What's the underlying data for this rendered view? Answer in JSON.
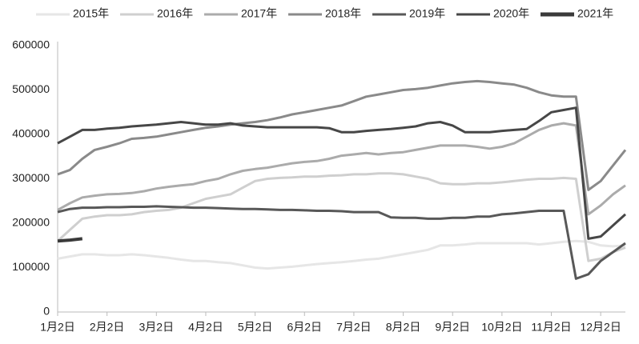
{
  "chart_data": {
    "type": "line",
    "categories": [
      "1月2日",
      null,
      null,
      null,
      "2月2日",
      null,
      null,
      null,
      "3月2日",
      null,
      null,
      null,
      "4月2日",
      null,
      null,
      null,
      "5月2日",
      null,
      null,
      null,
      "6月2日",
      null,
      null,
      null,
      "7月2日",
      null,
      null,
      null,
      "8月2日",
      null,
      null,
      null,
      "9月2日",
      null,
      null,
      null,
      "10月2日",
      null,
      null,
      null,
      "11月2日",
      null,
      null,
      null,
      "12月2日",
      null,
      null
    ],
    "series": [
      {
        "name": "2015年",
        "color": "#e6e6e6",
        "values": [
          120000,
          125000,
          130000,
          130000,
          128000,
          128000,
          130000,
          128000,
          125000,
          122000,
          118000,
          115000,
          115000,
          112000,
          110000,
          105000,
          100000,
          98000,
          100000,
          102000,
          105000,
          108000,
          110000,
          112000,
          115000,
          118000,
          120000,
          125000,
          130000,
          135000,
          140000,
          150000,
          150000,
          152000,
          155000,
          155000,
          155000,
          155000,
          155000,
          152000,
          155000,
          158000,
          160000,
          158000,
          150000,
          148000,
          150000
        ]
      },
      {
        "name": "2016年",
        "color": "#cfcfcf",
        "values": [
          160000,
          185000,
          210000,
          215000,
          218000,
          218000,
          220000,
          225000,
          228000,
          230000,
          235000,
          245000,
          255000,
          260000,
          265000,
          280000,
          295000,
          300000,
          302000,
          303000,
          305000,
          305000,
          307000,
          308000,
          310000,
          310000,
          312000,
          312000,
          310000,
          305000,
          300000,
          290000,
          288000,
          288000,
          290000,
          290000,
          292000,
          295000,
          298000,
          300000,
          300000,
          302000,
          300000,
          115000,
          120000,
          135000,
          145000
        ]
      },
      {
        "name": "2017年",
        "color": "#ababab",
        "values": [
          230000,
          245000,
          258000,
          262000,
          265000,
          266000,
          268000,
          272000,
          278000,
          282000,
          285000,
          288000,
          295000,
          300000,
          310000,
          318000,
          322000,
          325000,
          330000,
          335000,
          338000,
          340000,
          345000,
          352000,
          355000,
          358000,
          355000,
          358000,
          360000,
          365000,
          370000,
          375000,
          375000,
          375000,
          372000,
          368000,
          372000,
          380000,
          395000,
          410000,
          420000,
          425000,
          420000,
          220000,
          240000,
          265000,
          285000
        ]
      },
      {
        "name": "2018年",
        "color": "#8a8a8a",
        "values": [
          310000,
          320000,
          345000,
          365000,
          372000,
          380000,
          390000,
          392000,
          395000,
          400000,
          405000,
          410000,
          415000,
          418000,
          422000,
          425000,
          428000,
          432000,
          438000,
          445000,
          450000,
          455000,
          460000,
          465000,
          475000,
          485000,
          490000,
          495000,
          500000,
          502000,
          505000,
          510000,
          515000,
          518000,
          520000,
          518000,
          515000,
          512000,
          505000,
          495000,
          488000,
          485000,
          485000,
          275000,
          295000,
          330000,
          365000
        ]
      },
      {
        "name": "2019年",
        "color": "#585858",
        "values": [
          225000,
          232000,
          235000,
          235000,
          236000,
          236000,
          237000,
          237000,
          238000,
          237000,
          236000,
          235000,
          235000,
          234000,
          233000,
          232000,
          232000,
          231000,
          230000,
          230000,
          229000,
          228000,
          228000,
          227000,
          225000,
          225000,
          225000,
          213000,
          212000,
          212000,
          210000,
          210000,
          212000,
          212000,
          215000,
          215000,
          220000,
          222000,
          225000,
          228000,
          228000,
          228000,
          75000,
          85000,
          115000,
          135000,
          155000
        ]
      },
      {
        "name": "2020年",
        "color": "#474747",
        "values": [
          380000,
          395000,
          410000,
          410000,
          413000,
          415000,
          418000,
          420000,
          422000,
          425000,
          428000,
          425000,
          422000,
          422000,
          425000,
          420000,
          418000,
          416000,
          416000,
          416000,
          416000,
          416000,
          414000,
          405000,
          405000,
          408000,
          410000,
          412000,
          415000,
          418000,
          425000,
          428000,
          420000,
          405000,
          405000,
          405000,
          408000,
          410000,
          412000,
          430000,
          450000,
          455000,
          460000,
          165000,
          170000,
          195000,
          220000
        ]
      },
      {
        "name": "2021年",
        "color": "#3a3a3a",
        "values": [
          160000,
          162000,
          165000,
          null,
          null,
          null,
          null,
          null,
          null,
          null,
          null,
          null,
          null,
          null,
          null,
          null,
          null,
          null,
          null,
          null,
          null,
          null,
          null,
          null,
          null,
          null,
          null,
          null,
          null,
          null,
          null,
          null,
          null,
          null,
          null,
          null,
          null,
          null,
          null,
          null,
          null,
          null,
          null,
          null,
          null,
          null,
          null
        ]
      }
    ],
    "ylim": [
      0,
      600000
    ],
    "yticks": [
      0,
      100000,
      200000,
      300000,
      400000,
      500000,
      600000
    ],
    "grid": false,
    "legend": "top"
  }
}
